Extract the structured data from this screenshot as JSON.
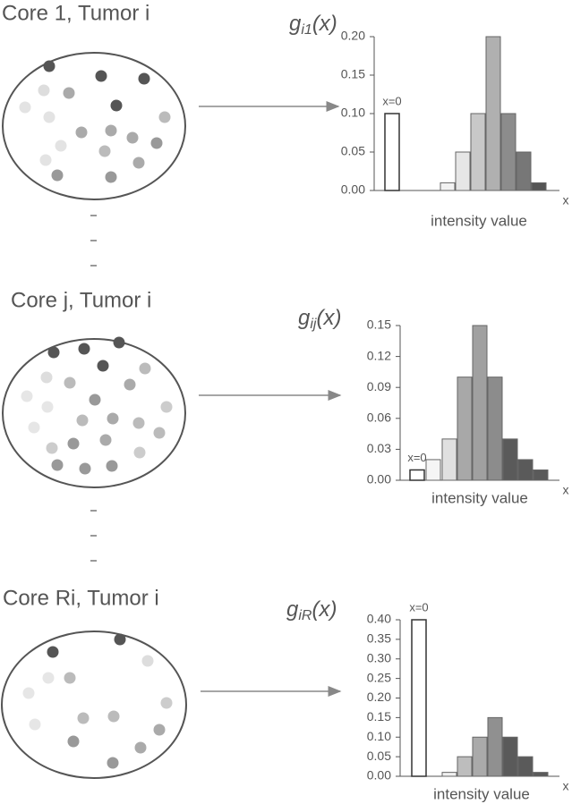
{
  "chart_data": [
    {
      "type": "bar",
      "title": "Core 1, Tumor i",
      "ylabel": {
        "base": "g",
        "sub": "i1",
        "suffix": "(x)"
      },
      "xlabel": "intensity value",
      "x_end_label": "x",
      "annotation": "x=0",
      "categories": [
        null,
        null,
        null,
        null,
        null,
        null,
        null,
        null
      ],
      "values": [
        0.1,
        0.01,
        0.05,
        0.1,
        0.2,
        0.1,
        0.05,
        0.01
      ],
      "colors": [
        "#ffffff",
        "#f2f2f2",
        "#e6e6e6",
        "#c8c8c8",
        "#b0b0b0",
        "#8c8c8c",
        "#777777",
        "#555555"
      ],
      "ylim": [
        0,
        0.2
      ],
      "yticks": [
        {
          "value": 0,
          "label": "0.00"
        },
        {
          "value": 0.05,
          "label": "0.05"
        },
        {
          "value": 0.1,
          "label": "0.10"
        },
        {
          "value": 0.15,
          "label": "0.15"
        },
        {
          "value": 0.2,
          "label": "0.20"
        }
      ]
    },
    {
      "type": "bar",
      "title": "Core j, Tumor i",
      "ylabel": {
        "base": "g",
        "sub": "ij",
        "suffix": "(x)"
      },
      "xlabel": "intensity value",
      "x_end_label": "x",
      "annotation": "x=0",
      "categories": [
        null,
        null,
        null,
        null,
        null,
        null,
        null,
        null,
        null
      ],
      "values": [
        0.01,
        0.02,
        0.04,
        0.1,
        0.15,
        0.1,
        0.04,
        0.02,
        0.01
      ],
      "colors": [
        "#ffffff",
        "#f5f5f5",
        "#e0e0e0",
        "#a8a8a8",
        "#a0a0a0",
        "#8c8c8c",
        "#5a5a5a",
        "#5a5a5a",
        "#5a5a5a"
      ],
      "ylim": [
        0,
        0.15
      ],
      "yticks": [
        {
          "value": 0,
          "label": "0.00"
        },
        {
          "value": 0.03,
          "label": "0.03"
        },
        {
          "value": 0.06,
          "label": "0.06"
        },
        {
          "value": 0.09,
          "label": "0.09"
        },
        {
          "value": 0.12,
          "label": "0.12"
        },
        {
          "value": 0.15,
          "label": "0.15"
        }
      ]
    },
    {
      "type": "bar",
      "title": "Core Ri, Tumor i",
      "ylabel": {
        "base": "g",
        "sub": "iR",
        "suffix": "(x)"
      },
      "xlabel": "intensity value",
      "x_end_label": "x",
      "annotation": "x=0",
      "categories": [
        null,
        null,
        null,
        null,
        null,
        null,
        null,
        null
      ],
      "values": [
        0.4,
        0.01,
        0.05,
        0.1,
        0.15,
        0.1,
        0.05,
        0.01
      ],
      "colors": [
        "#ffffff",
        "#f0f0f0",
        "#bdbdbd",
        "#aaaaaa",
        "#909090",
        "#5a5a5a",
        "#5a5a5a",
        "#5a5a5a"
      ],
      "ylim": [
        0,
        0.4
      ],
      "yticks": [
        {
          "value": 0,
          "label": "0.00"
        },
        {
          "value": 0.05,
          "label": "0.05"
        },
        {
          "value": 0.1,
          "label": "0.10"
        },
        {
          "value": 0.15,
          "label": "0.15"
        },
        {
          "value": 0.2,
          "label": "0.20"
        },
        {
          "value": 0.25,
          "label": "0.25"
        },
        {
          "value": 0.3,
          "label": "0.30"
        },
        {
          "value": 0.35,
          "label": "0.35"
        },
        {
          "value": 0.4,
          "label": "0.40"
        }
      ]
    }
  ]
}
